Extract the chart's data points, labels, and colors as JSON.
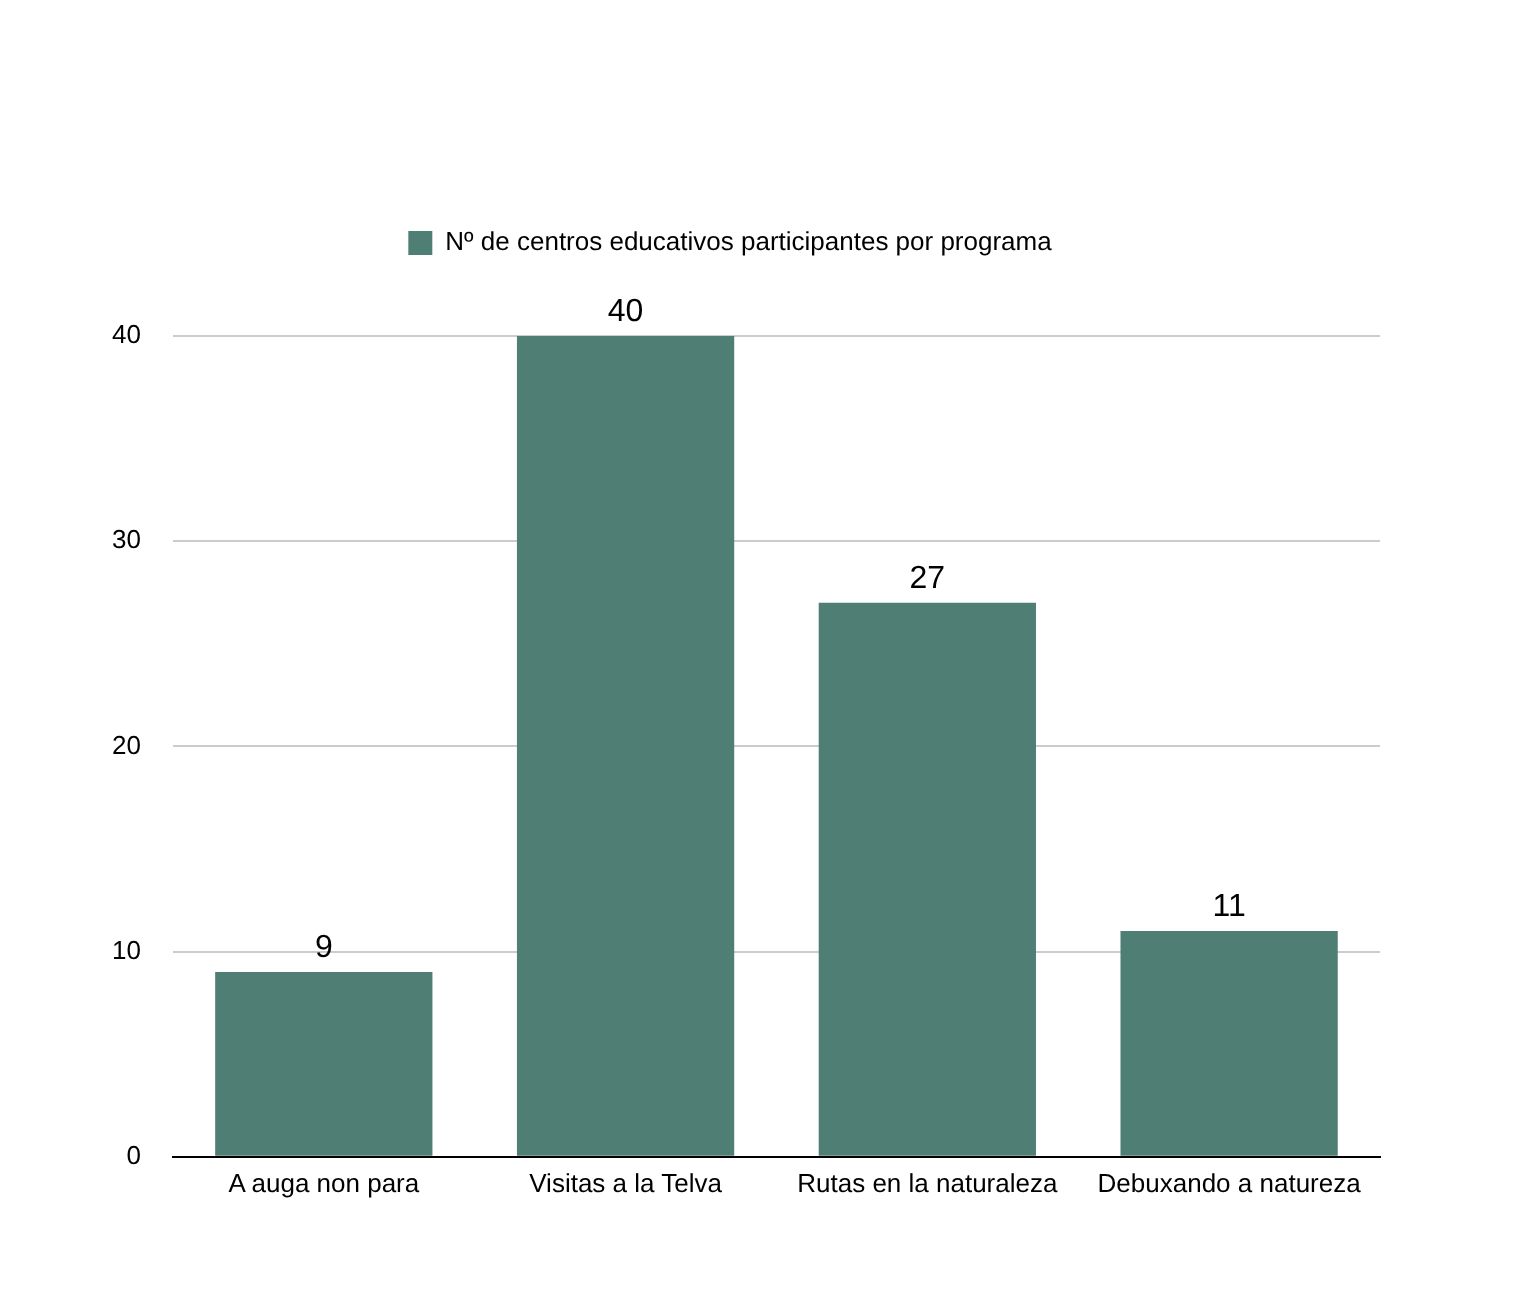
{
  "chart_data": {
    "type": "bar",
    "categories": [
      "A auga non para",
      "Visitas a la Telva",
      "Rutas en la naturaleza",
      "Debuxando a natureza"
    ],
    "series": [
      {
        "name": "Nº de centros educativos participantes por programa",
        "color": "#4f7f74",
        "values": [
          9,
          40,
          27,
          11
        ]
      }
    ],
    "ylim": [
      0,
      40
    ],
    "yticks": [
      0,
      10,
      20,
      30,
      40
    ],
    "grid": "y",
    "legend": "top",
    "data_labels": true
  }
}
